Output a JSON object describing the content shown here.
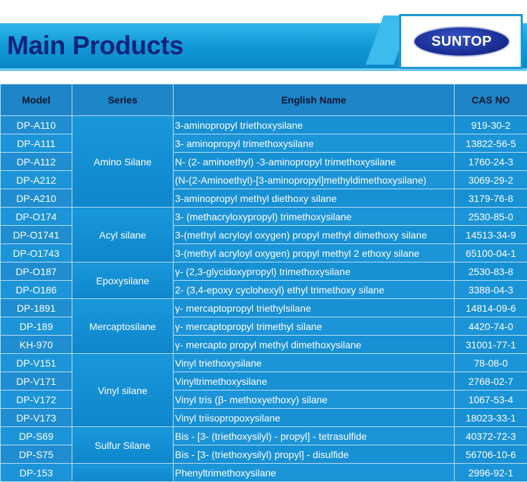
{
  "header": {
    "title": "Main Products",
    "logo_text": "SUNTOP"
  },
  "table": {
    "columns": [
      "Model",
      "Series",
      "English Name",
      "CAS NO"
    ],
    "groups": [
      {
        "series": "Amino Silane",
        "rows": [
          {
            "model": "DP-A110",
            "name": "3-aminopropyl triethoxysilane",
            "cas": "919-30-2"
          },
          {
            "model": "DP-A111",
            "name": "3- aminopropyl trimethoxysilane",
            "cas": "13822-56-5"
          },
          {
            "model": "DP-A112",
            "name": "N- (2- aminoethyl) -3-aminopropyl trimethoxysilane",
            "cas": "1760-24-3"
          },
          {
            "model": "DP-A212",
            "name": "(N-(2-Aminoethyl)-[3-aminopropyl]methyldimethoxysilane)",
            "cas": "3069-29-2"
          },
          {
            "model": "DP-A210",
            "name": "3-aminopropyl methyl diethoxy silane",
            "cas": "3179-76-8"
          }
        ]
      },
      {
        "series": "Acyl silane",
        "rows": [
          {
            "model": "DP-O174",
            "name": "3- (methacryloxypropyl) trimethoxysilane",
            "cas": "2530-85-0"
          },
          {
            "model": "DP-O1741",
            "name": "3-(methyl acryloyl oxygen) propyl methyl dimethoxy silane",
            "cas": "14513-34-9"
          },
          {
            "model": "DP-O1743",
            "name": "3-(methyl acryloyl oxygen) propyl methyl 2 ethoxy silane",
            "cas": "65100-04-1"
          }
        ]
      },
      {
        "series": "Epoxysilane",
        "rows": [
          {
            "model": "DP-O187",
            "name": "γ- (2,3-glycidoxypropyl) trimethoxysilane",
            "cas": "2530-83-8"
          },
          {
            "model": "DP-O186",
            "name": "2- (3,4-epoxy cyclohexyl) ethyl trimethoxy silane",
            "cas": "3388-04-3"
          }
        ]
      },
      {
        "series": "Mercaptosilane",
        "rows": [
          {
            "model": "DP-1891",
            "name": "γ- mercaptopropyl triethylsilane",
            "cas": "14814-09-6"
          },
          {
            "model": "DP-189",
            "name": "γ- mercaptopropyl trimethyl silane",
            "cas": "4420-74-0"
          },
          {
            "model": "KH-970",
            "name": "γ- mercapto propyl methyl dimethoxysilane",
            "cas": "31001-77-1"
          }
        ]
      },
      {
        "series": "Vinyl silane",
        "rows": [
          {
            "model": "DP-V151",
            "name": "Vinyl triethoxysilane",
            "cas": "78-08-0"
          },
          {
            "model": "DP-V171",
            "name": "Vinyltrimethoxysilane",
            "cas": "2768-02-7"
          },
          {
            "model": "DP-V172",
            "name": "Vinyl tris (β- methoxyethoxy) silane",
            "cas": "1067-53-4"
          },
          {
            "model": "DP-V173",
            "name": "Vinyl triisopropoxysilane",
            "cas": "18023-33-1"
          }
        ]
      },
      {
        "series": "Sulfur Silane",
        "rows": [
          {
            "model": "DP-S69",
            "name": "Bis - [3- (triethoxysilyl) - propyl] - tetrasulfide",
            "cas": "40372-72-3"
          },
          {
            "model": "DP-S75",
            "name": "Bis - [3- (triethoxysilyl) propyl] - disulfide",
            "cas": "56706-10-6"
          }
        ]
      },
      {
        "series": "",
        "rows": [
          {
            "model": "DP-153",
            "name": "Phenyltrimethoxysilane",
            "cas": "2996-92-1"
          }
        ]
      }
    ]
  }
}
